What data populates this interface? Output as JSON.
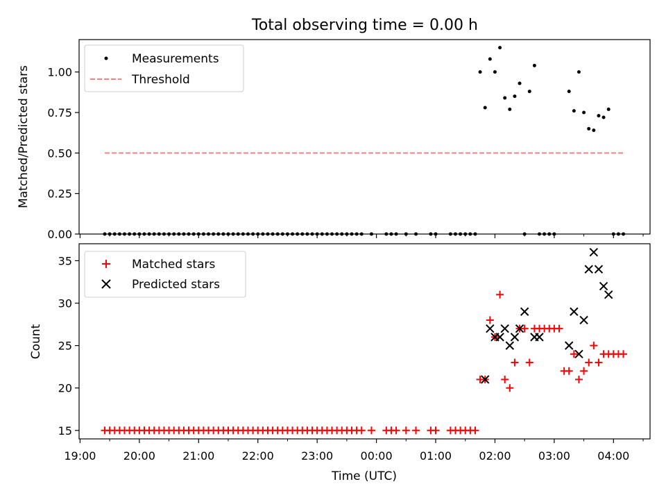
{
  "chart_data": [
    {
      "type": "scatter",
      "title": "Total observing time = 0.00 h",
      "xlabel": "",
      "ylabel": "Matched/Predicted stars",
      "ylim": [
        0,
        1.2
      ],
      "yticks": [
        "0.00",
        "0.25",
        "0.50",
        "0.75",
        "1.00"
      ],
      "legend": {
        "placement": "top-left",
        "entries": [
          "Measurements",
          "Threshold"
        ]
      },
      "threshold": {
        "name": "Threshold",
        "value": 0.5,
        "x_start": "19:25",
        "x_end": "04:10",
        "color": "#ff7f7f"
      },
      "series": [
        {
          "name": "Measurements",
          "color": "#000000",
          "x": [
            "19:25",
            "19:30",
            "19:35",
            "19:40",
            "19:45",
            "19:50",
            "19:55",
            "20:00",
            "20:05",
            "20:10",
            "20:15",
            "20:20",
            "20:25",
            "20:30",
            "20:35",
            "20:40",
            "20:45",
            "20:50",
            "20:55",
            "21:00",
            "21:05",
            "21:10",
            "21:15",
            "21:20",
            "21:25",
            "21:30",
            "21:35",
            "21:40",
            "21:45",
            "21:50",
            "21:55",
            "22:00",
            "22:05",
            "22:10",
            "22:15",
            "22:20",
            "22:25",
            "22:30",
            "22:35",
            "22:40",
            "22:45",
            "22:50",
            "22:55",
            "23:00",
            "23:05",
            "23:10",
            "23:15",
            "23:20",
            "23:25",
            "23:30",
            "23:35",
            "23:40",
            "23:45",
            "23:55",
            "00:10",
            "00:15",
            "00:20",
            "00:30",
            "00:40",
            "00:55",
            "01:00",
            "01:15",
            "01:20",
            "01:25",
            "01:30",
            "01:35",
            "01:40",
            "01:45",
            "01:50",
            "01:55",
            "02:00",
            "02:05",
            "02:10",
            "02:15",
            "02:20",
            "02:25",
            "02:30",
            "02:35",
            "02:40",
            "02:45",
            "02:50",
            "02:55",
            "03:00",
            "03:15",
            "03:20",
            "03:25",
            "03:30",
            "03:35",
            "03:40",
            "03:45",
            "03:50",
            "03:55",
            "04:00",
            "04:05",
            "04:10"
          ],
          "y": [
            0,
            0,
            0,
            0,
            0,
            0,
            0,
            0,
            0,
            0,
            0,
            0,
            0,
            0,
            0,
            0,
            0,
            0,
            0,
            0,
            0,
            0,
            0,
            0,
            0,
            0,
            0,
            0,
            0,
            0,
            0,
            0,
            0,
            0,
            0,
            0,
            0,
            0,
            0,
            0,
            0,
            0,
            0,
            0,
            0,
            0,
            0,
            0,
            0,
            0,
            0,
            0,
            0,
            0,
            0,
            0,
            0,
            0,
            0,
            0,
            0,
            0,
            0,
            0,
            0,
            0,
            0,
            1.0,
            0.78,
            1.08,
            1.0,
            1.15,
            0.84,
            0.77,
            0.85,
            0.93,
            0,
            0.88,
            1.04,
            0,
            0,
            0,
            0,
            0.88,
            0.76,
            1.0,
            0.75,
            0.65,
            0.64,
            0.73,
            0.72,
            0.77,
            0,
            0,
            0
          ]
        }
      ]
    },
    {
      "type": "scatter",
      "title": "",
      "xlabel": "Time (UTC)",
      "ylabel": "Count",
      "ylim": [
        14,
        37
      ],
      "yticks": [
        "15",
        "20",
        "25",
        "30",
        "35"
      ],
      "xticks": [
        "19:00",
        "20:00",
        "21:00",
        "22:00",
        "23:00",
        "00:00",
        "01:00",
        "02:00",
        "03:00",
        "04:00"
      ],
      "xlim": [
        "18:59",
        "04:37"
      ],
      "legend": {
        "placement": "top-left",
        "entries": [
          "Matched stars",
          "Predicted stars"
        ]
      },
      "series": [
        {
          "name": "Matched stars",
          "marker": "plus",
          "color": "#ff0000",
          "x": [
            "19:25",
            "19:30",
            "19:35",
            "19:40",
            "19:45",
            "19:50",
            "19:55",
            "20:00",
            "20:05",
            "20:10",
            "20:15",
            "20:20",
            "20:25",
            "20:30",
            "20:35",
            "20:40",
            "20:45",
            "20:50",
            "20:55",
            "21:00",
            "21:05",
            "21:10",
            "21:15",
            "21:20",
            "21:25",
            "21:30",
            "21:35",
            "21:40",
            "21:45",
            "21:50",
            "21:55",
            "22:00",
            "22:05",
            "22:10",
            "22:15",
            "22:20",
            "22:25",
            "22:30",
            "22:35",
            "22:40",
            "22:45",
            "22:50",
            "22:55",
            "23:00",
            "23:05",
            "23:10",
            "23:15",
            "23:20",
            "23:25",
            "23:30",
            "23:35",
            "23:40",
            "23:45",
            "23:55",
            "00:10",
            "00:15",
            "00:20",
            "00:30",
            "00:40",
            "00:55",
            "01:00",
            "01:15",
            "01:20",
            "01:25",
            "01:30",
            "01:35",
            "01:40",
            "01:45",
            "01:50",
            "01:55",
            "02:00",
            "02:05",
            "02:10",
            "02:15",
            "02:20",
            "02:25",
            "02:30",
            "02:35",
            "02:40",
            "02:45",
            "02:50",
            "02:55",
            "03:00",
            "03:05",
            "03:10",
            "03:15",
            "03:20",
            "03:25",
            "03:30",
            "03:35",
            "03:40",
            "03:45",
            "03:50",
            "03:55",
            "04:00",
            "04:05",
            "04:10"
          ],
          "y": [
            15,
            15,
            15,
            15,
            15,
            15,
            15,
            15,
            15,
            15,
            15,
            15,
            15,
            15,
            15,
            15,
            15,
            15,
            15,
            15,
            15,
            15,
            15,
            15,
            15,
            15,
            15,
            15,
            15,
            15,
            15,
            15,
            15,
            15,
            15,
            15,
            15,
            15,
            15,
            15,
            15,
            15,
            15,
            15,
            15,
            15,
            15,
            15,
            15,
            15,
            15,
            15,
            15,
            15,
            15,
            15,
            15,
            15,
            15,
            15,
            15,
            15,
            15,
            15,
            15,
            15,
            15,
            21,
            21,
            28,
            26,
            31,
            21,
            20,
            23,
            27,
            27,
            23,
            27,
            27,
            27,
            27,
            27,
            27,
            22,
            22,
            24,
            21,
            22,
            23,
            25,
            23,
            24,
            24,
            24,
            24,
            24
          ]
        },
        {
          "name": "Predicted stars",
          "marker": "x",
          "color": "#000000",
          "x": [
            "01:50",
            "01:55",
            "02:00",
            "02:05",
            "02:10",
            "02:15",
            "02:20",
            "02:25",
            "02:30",
            "02:40",
            "02:45",
            "03:15",
            "03:20",
            "03:25",
            "03:30",
            "03:35",
            "03:40",
            "03:45",
            "03:50",
            "03:55"
          ],
          "y": [
            21,
            27,
            26,
            26,
            27,
            25,
            26,
            27,
            29,
            26,
            26,
            25,
            29,
            24,
            28,
            34,
            36,
            34,
            32,
            31
          ]
        }
      ]
    }
  ]
}
